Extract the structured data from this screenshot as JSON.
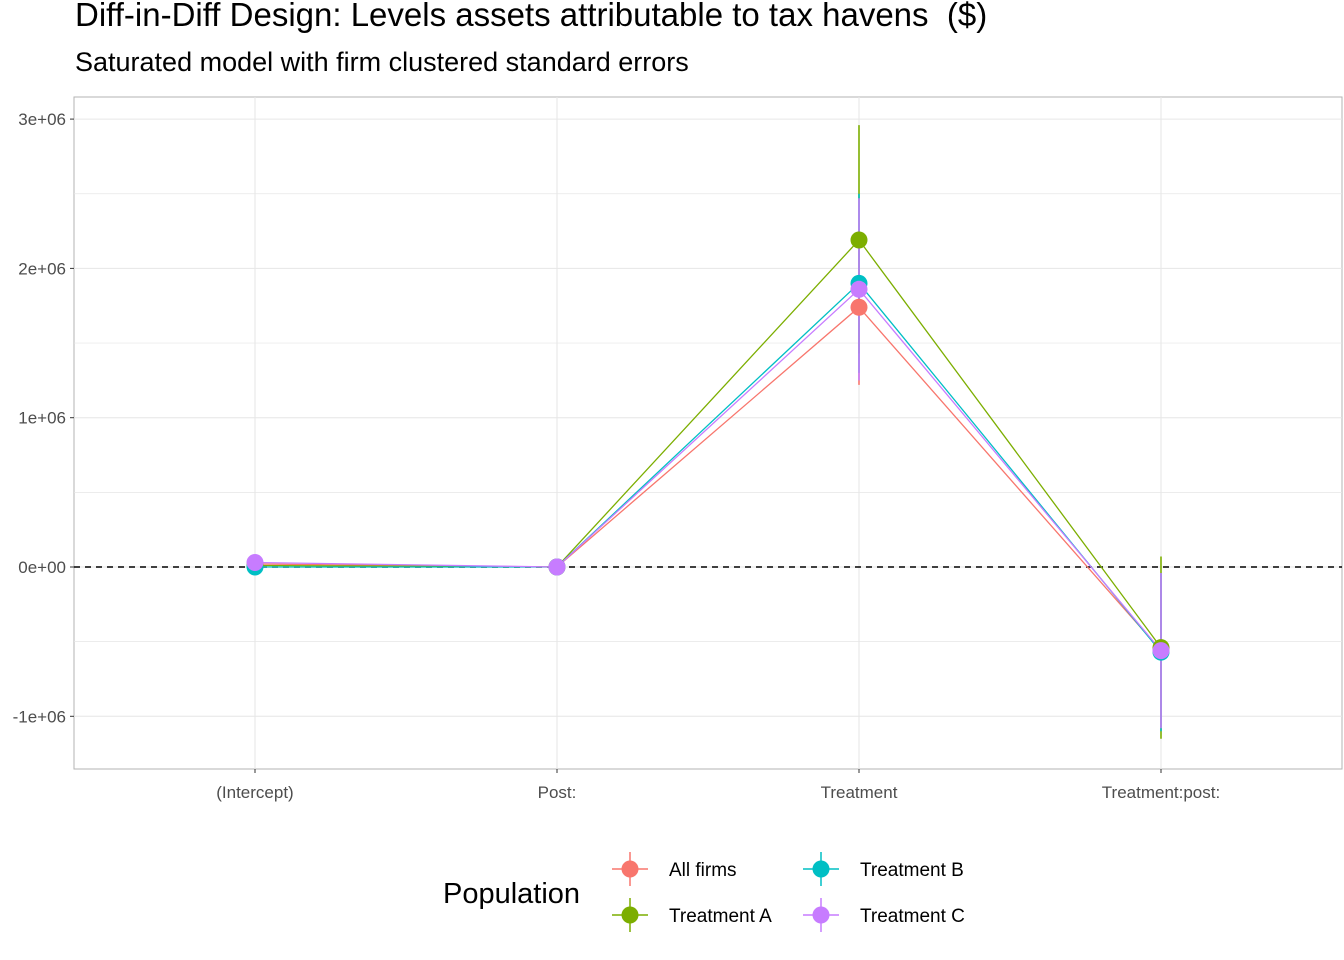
{
  "chart_data": {
    "type": "line",
    "title": "Diff-in-Diff Design: Levels assets attributable to tax havens  ($)",
    "subtitle": "Saturated model with firm clustered standard errors",
    "categories": [
      "(Intercept)",
      "Post:",
      "Treatment",
      "Treatment:post:"
    ],
    "y_ticks": [
      -1000000,
      0,
      1000000,
      2000000,
      3000000
    ],
    "y_tick_labels": [
      "-1e+06",
      "0e+00",
      "1e+06",
      "2e+06",
      "3e+06"
    ],
    "ylim": [
      -1350000,
      3000000
    ],
    "reference_line": {
      "y": 0,
      "style": "dashed"
    },
    "grid": true,
    "legend": {
      "title": "Population",
      "position": "bottom"
    },
    "series": [
      {
        "name": "All firms",
        "color": "#F8766D",
        "values": [
          20000,
          0,
          1740000,
          -560000
        ],
        "lower": [
          0,
          0,
          1220000,
          -1080000
        ],
        "upper": [
          40000,
          0,
          2260000,
          -40000
        ]
      },
      {
        "name": "Treatment A",
        "color": "#7CAE00",
        "values": [
          10000,
          0,
          2190000,
          -540000
        ],
        "lower": [
          -10000,
          0,
          1430000,
          -1150000
        ],
        "upper": [
          30000,
          0,
          2960000,
          70000
        ]
      },
      {
        "name": "Treatment B",
        "color": "#00BFC4",
        "values": [
          0,
          0,
          1900000,
          -570000
        ],
        "lower": [
          -20000,
          0,
          1300000,
          -1100000
        ],
        "upper": [
          20000,
          0,
          2500000,
          -40000
        ]
      },
      {
        "name": "Treatment C",
        "color": "#C77CFF",
        "values": [
          30000,
          0,
          1860000,
          -560000
        ],
        "lower": [
          10000,
          0,
          1250000,
          -1080000
        ],
        "upper": [
          50000,
          0,
          2470000,
          -40000
        ]
      }
    ]
  }
}
